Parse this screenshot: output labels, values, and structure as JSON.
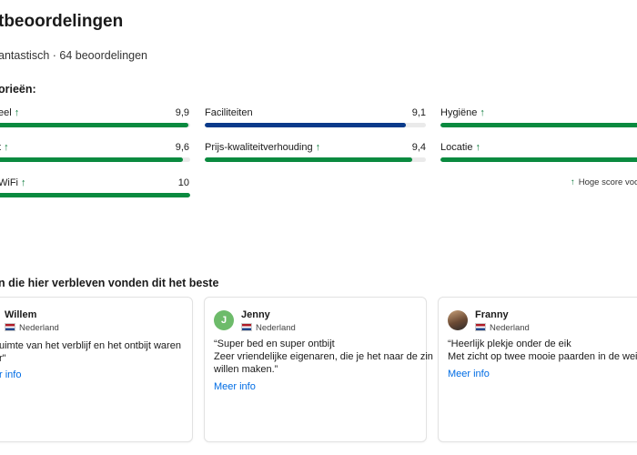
{
  "header": {
    "title": "tbeoordelingen",
    "summary": "antastisch · 64 beoordelingen",
    "categories_heading": "orieën:"
  },
  "categories": [
    {
      "name": "eel",
      "score": "9,9",
      "value": 0.99,
      "color": "#0a8a3f",
      "up": "↑"
    },
    {
      "name": "Faciliteiten",
      "score": "9,1",
      "value": 0.91,
      "color": "#0a3a8a",
      "up": ""
    },
    {
      "name": "Hygiëne",
      "score": "",
      "value": 1.0,
      "color": "#0a8a3f",
      "up": "↑"
    },
    {
      "name": "t",
      "score": "9,6",
      "value": 0.96,
      "color": "#0a8a3f",
      "up": "↑"
    },
    {
      "name": "Prijs-kwaliteitverhouding",
      "score": "9,4",
      "value": 0.94,
      "color": "#0a8a3f",
      "up": "↑"
    },
    {
      "name": "Locatie",
      "score": "",
      "value": 1.0,
      "color": "#0a8a3f",
      "up": "↑"
    },
    {
      "name": "WiFi",
      "score": "10",
      "value": 1.0,
      "color": "#0a8a3f",
      "up": "↑"
    }
  ],
  "high_score_note": {
    "arrow": "↑",
    "text": "Hoge score voo"
  },
  "guests": {
    "heading": "n die hier verbleven vonden dit het beste",
    "reviews": [
      {
        "name": "Willem",
        "country": "Nederland",
        "avatar": "",
        "quote": [
          "uimte van het verblijf en het ontbijt waren",
          "r\""
        ],
        "more": "r info"
      },
      {
        "name": "Jenny",
        "country": "Nederland",
        "avatar": "J",
        "quote": [
          "“Super bed en super ontbijt",
          "Zeer vriendelijke eigenaren, die je het naar de zin",
          "willen maken.”"
        ],
        "more": "Meer info"
      },
      {
        "name": "Franny",
        "country": "Nederland",
        "avatar": "",
        "quote": [
          "“Heerlijk plekje onder de eik",
          "Met zicht op twee mooie paarden in de wei”"
        ],
        "more": "Meer info"
      }
    ]
  }
}
